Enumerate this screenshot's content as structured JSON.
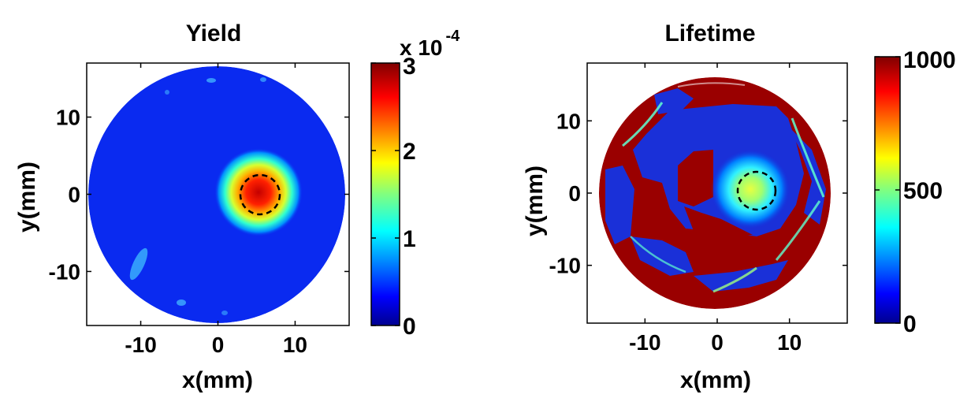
{
  "chart_data": [
    {
      "type": "heatmap",
      "title": "Yield",
      "xlabel": "x(mm)",
      "ylabel": "y(mm)",
      "xlim": [
        -17,
        17
      ],
      "ylim": [
        -17,
        17
      ],
      "xticks": [
        "-10",
        "0",
        "10"
      ],
      "yticks": [
        "10",
        "0",
        "-10"
      ],
      "xtick_values": [
        -10,
        0,
        10
      ],
      "ytick_values": [
        10,
        0,
        -10
      ],
      "colorbar": {
        "colormap": "jet",
        "range": [
          0,
          3
        ],
        "tick_values": [
          0,
          1,
          2,
          3
        ],
        "ticks": [
          "0",
          "1",
          "2",
          "3"
        ],
        "multiplier_base": "x 10",
        "multiplier_exponent": "-4"
      },
      "features": {
        "sample_radius_mm": 16.8,
        "background_value": 0.05,
        "hotspot_center_mm": [
          5.5,
          0
        ],
        "hotspot_peak": 2.9,
        "hotspot_radius_mm": 4.5,
        "dashed_circle_center_mm": [
          5.5,
          0.2
        ],
        "dashed_circle_radius_mm": 2.5
      }
    },
    {
      "type": "heatmap",
      "title": "Lifetime",
      "xlabel": "x(mm)",
      "ylabel": "y(mm)",
      "xlim": [
        -18,
        18
      ],
      "ylim": [
        -18,
        18
      ],
      "xticks": [
        "-10",
        "0",
        "10"
      ],
      "yticks": [
        "10",
        "0",
        "-10"
      ],
      "xtick_values": [
        -10,
        0,
        10
      ],
      "ytick_values": [
        10,
        0,
        -10
      ],
      "colorbar": {
        "colormap": "jet",
        "range": [
          0,
          1000
        ],
        "tick_values": [
          0,
          500,
          1000
        ],
        "ticks": [
          "0",
          "500",
          "1000"
        ]
      },
      "features": {
        "sample_radius_mm": 16.8,
        "saturated_value": 1000,
        "low_value": 30,
        "center_spot_mm": [
          5,
          0.3
        ],
        "center_spot_value": 650,
        "dashed_circle_center_mm": [
          5.5,
          0.2
        ],
        "dashed_circle_radius_mm": 2.5
      }
    }
  ]
}
